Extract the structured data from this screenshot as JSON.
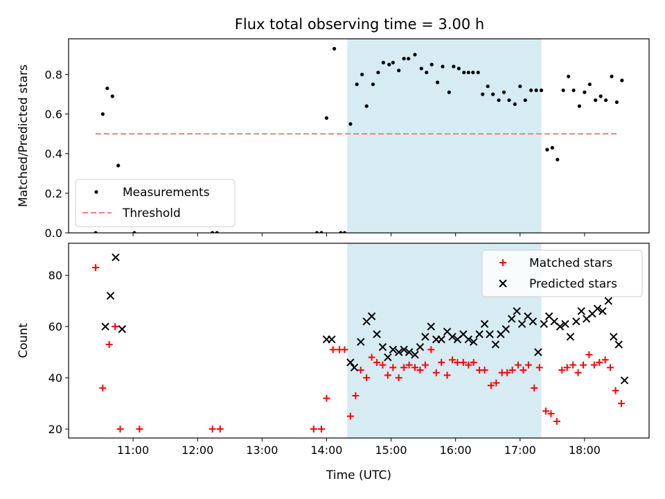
{
  "figure": {
    "title": "Flux total observing time = 3.00 h"
  },
  "chart_data": [
    {
      "type": "scatter",
      "ylabel": "Matched/Predicted stars",
      "xlabel": "",
      "x_unit": "hours",
      "xlim": [
        10.0,
        19.0
      ],
      "ylim": [
        0.0,
        0.98
      ],
      "yticks": [
        0.0,
        0.2,
        0.4,
        0.6,
        0.8
      ],
      "ytick_labels": [
        "0.0",
        "0.2",
        "0.4",
        "0.6",
        "0.8"
      ],
      "xticks": [
        11,
        12,
        13,
        14,
        15,
        16,
        17,
        18
      ],
      "xtick_labels": [
        "",
        "",
        "",
        "",
        "",
        "",
        "",
        ""
      ],
      "shaded_span": {
        "from": 14.32,
        "to": 17.33,
        "color": "#add8e6"
      },
      "threshold": {
        "name": "Threshold",
        "value": 0.5,
        "from": 10.42,
        "to": 18.53,
        "color": "#f08080",
        "style": "dashed"
      },
      "legend": {
        "position": "lower-left",
        "entries": [
          "Measurements",
          "Threshold"
        ]
      },
      "series": [
        {
          "name": "Measurements",
          "color": "#000000",
          "marker": "dot",
          "points": [
            [
              10.42,
              0.0
            ],
            [
              10.53,
              0.6
            ],
            [
              10.6,
              0.73
            ],
            [
              10.68,
              0.69
            ],
            [
              10.77,
              0.34
            ],
            [
              11.02,
              0.0
            ],
            [
              12.23,
              0.0
            ],
            [
              12.3,
              0.0
            ],
            [
              13.85,
              0.0
            ],
            [
              13.92,
              0.0
            ],
            [
              14.0,
              0.58
            ],
            [
              14.12,
              0.93
            ],
            [
              14.22,
              0.0
            ],
            [
              14.28,
              0.0
            ],
            [
              14.37,
              0.55
            ],
            [
              14.47,
              0.75
            ],
            [
              14.55,
              0.8
            ],
            [
              14.62,
              0.64
            ],
            [
              14.72,
              0.75
            ],
            [
              14.8,
              0.81
            ],
            [
              14.88,
              0.86
            ],
            [
              14.97,
              0.85
            ],
            [
              15.03,
              0.86
            ],
            [
              15.12,
              0.82
            ],
            [
              15.2,
              0.88
            ],
            [
              15.27,
              0.88
            ],
            [
              15.37,
              0.9
            ],
            [
              15.47,
              0.83
            ],
            [
              15.55,
              0.81
            ],
            [
              15.63,
              0.85
            ],
            [
              15.72,
              0.76
            ],
            [
              15.8,
              0.84
            ],
            [
              15.9,
              0.71
            ],
            [
              15.97,
              0.84
            ],
            [
              16.05,
              0.83
            ],
            [
              16.13,
              0.81
            ],
            [
              16.2,
              0.81
            ],
            [
              16.27,
              0.81
            ],
            [
              16.35,
              0.81
            ],
            [
              16.42,
              0.7
            ],
            [
              16.5,
              0.74
            ],
            [
              16.58,
              0.7
            ],
            [
              16.67,
              0.67
            ],
            [
              16.75,
              0.71
            ],
            [
              16.83,
              0.67
            ],
            [
              16.92,
              0.65
            ],
            [
              17.0,
              0.74
            ],
            [
              17.08,
              0.67
            ],
            [
              17.17,
              0.72
            ],
            [
              17.25,
              0.72
            ],
            [
              17.33,
              0.72
            ],
            [
              17.42,
              0.42
            ],
            [
              17.5,
              0.43
            ],
            [
              17.58,
              0.37
            ],
            [
              17.67,
              0.72
            ],
            [
              17.75,
              0.79
            ],
            [
              17.83,
              0.72
            ],
            [
              17.92,
              0.64
            ],
            [
              18.0,
              0.71
            ],
            [
              18.08,
              0.75
            ],
            [
              18.17,
              0.67
            ],
            [
              18.25,
              0.69
            ],
            [
              18.33,
              0.67
            ],
            [
              18.42,
              0.79
            ],
            [
              18.5,
              0.66
            ],
            [
              18.58,
              0.77
            ]
          ]
        }
      ]
    },
    {
      "type": "scatter",
      "ylabel": "Count",
      "xlabel": "Time (UTC)",
      "x_unit": "hours",
      "xlim": [
        10.0,
        19.0
      ],
      "ylim": [
        16.5,
        92.5
      ],
      "yticks": [
        20,
        40,
        60,
        80
      ],
      "ytick_labels": [
        "20",
        "40",
        "60",
        "80"
      ],
      "xticks": [
        11,
        12,
        13,
        14,
        15,
        16,
        17,
        18
      ],
      "xtick_labels": [
        "11:00",
        "12:00",
        "13:00",
        "14:00",
        "15:00",
        "16:00",
        "17:00",
        "18:00"
      ],
      "shaded_span": {
        "from": 14.32,
        "to": 17.33,
        "color": "#add8e6"
      },
      "legend": {
        "position": "upper-right",
        "entries": [
          "Matched stars",
          "Predicted stars"
        ]
      },
      "series": [
        {
          "name": "Matched stars",
          "color": "#ff0000",
          "marker": "plus",
          "points": [
            [
              10.42,
              83
            ],
            [
              10.53,
              36
            ],
            [
              10.63,
              53
            ],
            [
              10.72,
              60
            ],
            [
              10.8,
              20
            ],
            [
              11.1,
              20
            ],
            [
              12.23,
              20
            ],
            [
              12.35,
              20
            ],
            [
              13.8,
              20
            ],
            [
              13.92,
              20
            ],
            [
              14.0,
              32
            ],
            [
              14.1,
              51
            ],
            [
              14.2,
              51
            ],
            [
              14.28,
              51
            ],
            [
              14.37,
              25
            ],
            [
              14.45,
              33
            ],
            [
              14.53,
              43
            ],
            [
              14.62,
              40
            ],
            [
              14.7,
              48
            ],
            [
              14.78,
              46
            ],
            [
              14.87,
              45
            ],
            [
              14.95,
              41
            ],
            [
              15.03,
              44
            ],
            [
              15.12,
              40
            ],
            [
              15.2,
              44
            ],
            [
              15.28,
              45
            ],
            [
              15.37,
              44
            ],
            [
              15.45,
              43
            ],
            [
              15.53,
              45
            ],
            [
              15.62,
              51
            ],
            [
              15.7,
              42
            ],
            [
              15.78,
              46
            ],
            [
              15.87,
              41
            ],
            [
              15.95,
              47
            ],
            [
              16.03,
              46
            ],
            [
              16.12,
              46
            ],
            [
              16.2,
              45
            ],
            [
              16.28,
              46
            ],
            [
              16.37,
              43
            ],
            [
              16.45,
              43
            ],
            [
              16.55,
              37
            ],
            [
              16.63,
              38
            ],
            [
              16.72,
              42
            ],
            [
              16.8,
              42
            ],
            [
              16.88,
              43
            ],
            [
              16.97,
              45
            ],
            [
              17.05,
              43
            ],
            [
              17.13,
              45
            ],
            [
              17.22,
              36
            ],
            [
              17.3,
              44
            ],
            [
              17.4,
              27
            ],
            [
              17.48,
              26
            ],
            [
              17.57,
              23
            ],
            [
              17.65,
              43
            ],
            [
              17.73,
              44
            ],
            [
              17.82,
              45
            ],
            [
              17.9,
              42
            ],
            [
              17.98,
              45
            ],
            [
              18.07,
              49
            ],
            [
              18.15,
              45
            ],
            [
              18.23,
              46
            ],
            [
              18.32,
              47
            ],
            [
              18.4,
              44
            ],
            [
              18.48,
              35
            ],
            [
              18.57,
              30
            ]
          ]
        },
        {
          "name": "Predicted stars",
          "color": "#000000",
          "marker": "x",
          "points": [
            [
              10.57,
              60
            ],
            [
              10.65,
              72
            ],
            [
              10.73,
              87
            ],
            [
              10.83,
              59
            ],
            [
              14.0,
              55
            ],
            [
              14.08,
              55
            ],
            [
              14.37,
              46
            ],
            [
              14.43,
              44
            ],
            [
              14.53,
              54
            ],
            [
              14.62,
              62
            ],
            [
              14.7,
              64
            ],
            [
              14.78,
              57
            ],
            [
              14.87,
              52
            ],
            [
              14.95,
              48
            ],
            [
              15.03,
              51
            ],
            [
              15.12,
              50
            ],
            [
              15.2,
              51
            ],
            [
              15.28,
              50
            ],
            [
              15.37,
              49
            ],
            [
              15.45,
              52
            ],
            [
              15.53,
              56
            ],
            [
              15.62,
              60
            ],
            [
              15.7,
              55
            ],
            [
              15.78,
              55
            ],
            [
              15.87,
              58
            ],
            [
              15.95,
              56
            ],
            [
              16.03,
              55
            ],
            [
              16.12,
              57
            ],
            [
              16.2,
              55
            ],
            [
              16.28,
              54
            ],
            [
              16.37,
              57
            ],
            [
              16.45,
              61
            ],
            [
              16.53,
              57
            ],
            [
              16.62,
              53
            ],
            [
              16.7,
              57
            ],
            [
              16.78,
              59
            ],
            [
              16.87,
              63
            ],
            [
              16.95,
              66
            ],
            [
              17.03,
              61
            ],
            [
              17.12,
              64
            ],
            [
              17.2,
              62
            ],
            [
              17.28,
              50
            ],
            [
              17.37,
              61
            ],
            [
              17.45,
              64
            ],
            [
              17.53,
              62
            ],
            [
              17.62,
              60
            ],
            [
              17.7,
              61
            ],
            [
              17.78,
              56
            ],
            [
              17.87,
              62
            ],
            [
              17.95,
              66
            ],
            [
              18.03,
              63
            ],
            [
              18.12,
              65
            ],
            [
              18.2,
              67
            ],
            [
              18.28,
              66
            ],
            [
              18.37,
              70
            ],
            [
              18.45,
              56
            ],
            [
              18.53,
              53
            ],
            [
              18.62,
              39
            ]
          ]
        }
      ]
    }
  ]
}
